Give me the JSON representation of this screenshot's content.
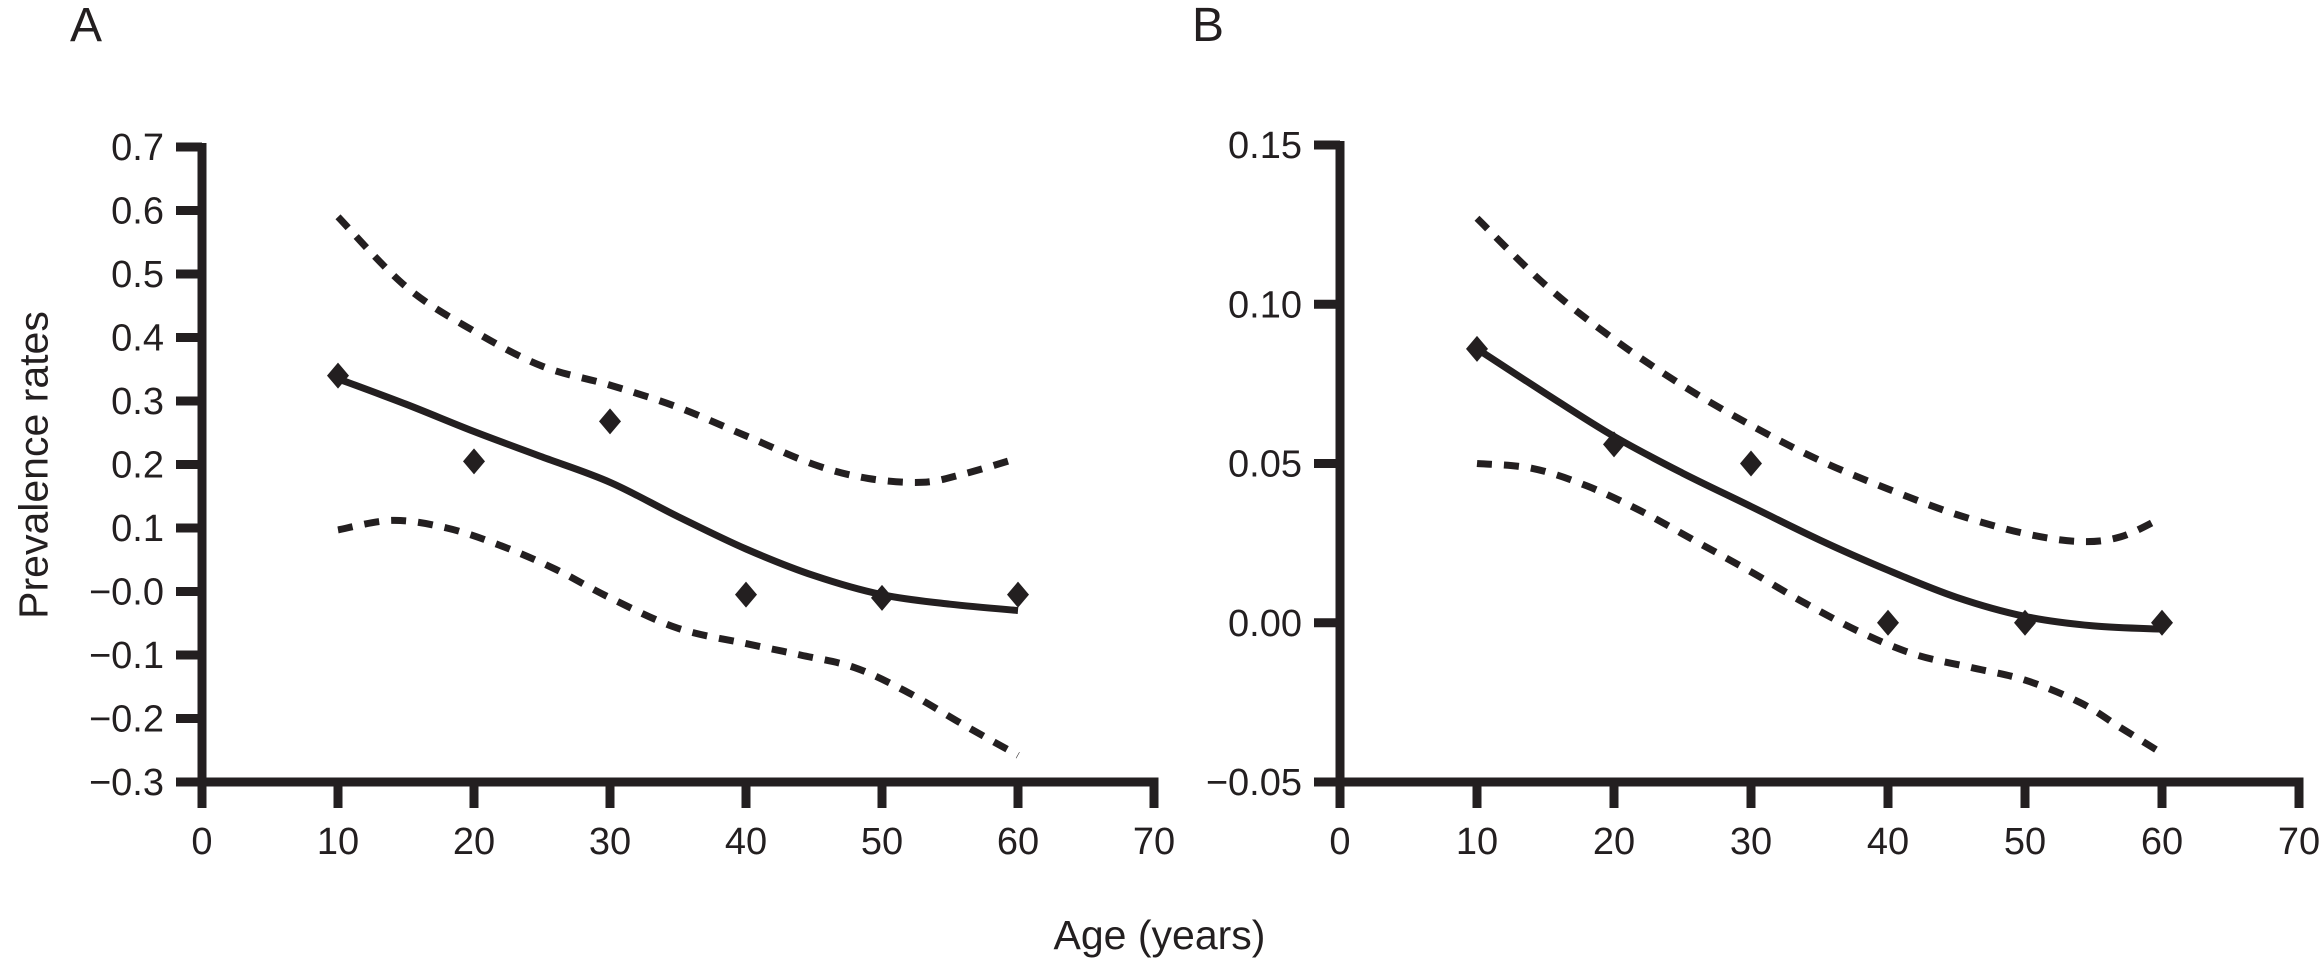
{
  "figure": {
    "xlabel": "Age (years)",
    "ylabel": "Prevalence rates",
    "background_color": "#ffffff",
    "ink_color": "#231f20"
  },
  "chart_data": [
    {
      "type": "line",
      "panel_label": "A",
      "xlabel": "Age (years)",
      "ylabel": "Prevalence rates",
      "xlim": [
        0,
        70
      ],
      "ylim": [
        -0.3,
        0.7
      ],
      "x_ticks": [
        0,
        10,
        20,
        30,
        40,
        50,
        60,
        70
      ],
      "y_ticks": [
        0.7,
        0.6,
        0.5,
        0.4,
        0.3,
        0.2,
        0.1,
        0.0,
        -0.1,
        -0.2,
        -0.3
      ],
      "y_tick_labels": [
        "0.7",
        "0.6",
        "0.5",
        "0.4",
        "0.3",
        "0.2",
        "0.1",
        "−0.0",
        "−0.1",
        "−0.2",
        "−0.3"
      ],
      "grid": false,
      "legend": "none",
      "series": [
        {
          "name": "upper-confidence-band",
          "kind": "line",
          "linestyle": "dashed",
          "points": [
            [
              10,
              0.59
            ],
            [
              15,
              0.48
            ],
            [
              20,
              0.41
            ],
            [
              25,
              0.355
            ],
            [
              30,
              0.325
            ],
            [
              35,
              0.29
            ],
            [
              40,
              0.245
            ],
            [
              45,
              0.2
            ],
            [
              49,
              0.178
            ],
            [
              53,
              0.172
            ],
            [
              56,
              0.185
            ],
            [
              60,
              0.21
            ]
          ]
        },
        {
          "name": "lower-confidence-band",
          "kind": "line",
          "linestyle": "dashed",
          "points": [
            [
              10,
              0.097
            ],
            [
              14,
              0.112
            ],
            [
              18,
              0.1
            ],
            [
              22,
              0.072
            ],
            [
              26,
              0.035
            ],
            [
              30,
              -0.01
            ],
            [
              35,
              -0.058
            ],
            [
              40,
              -0.082
            ],
            [
              44,
              -0.1
            ],
            [
              48,
              -0.12
            ],
            [
              52,
              -0.16
            ],
            [
              56,
              -0.21
            ],
            [
              60,
              -0.258
            ]
          ]
        },
        {
          "name": "fitted-prevalence-curve",
          "kind": "line",
          "linestyle": "solid",
          "points": [
            [
              10,
              0.335
            ],
            [
              15,
              0.295
            ],
            [
              20,
              0.252
            ],
            [
              25,
              0.212
            ],
            [
              30,
              0.172
            ],
            [
              35,
              0.118
            ],
            [
              40,
              0.067
            ],
            [
              45,
              0.025
            ],
            [
              50,
              -0.005
            ],
            [
              55,
              -0.02
            ],
            [
              60,
              -0.03
            ]
          ]
        },
        {
          "name": "observed-prevalence-points",
          "kind": "scatter",
          "marker": "diamond",
          "points": [
            [
              10,
              0.34
            ],
            [
              20,
              0.205
            ],
            [
              30,
              0.268
            ],
            [
              40,
              -0.005
            ],
            [
              50,
              -0.01
            ],
            [
              60,
              -0.005
            ]
          ]
        }
      ]
    },
    {
      "type": "line",
      "panel_label": "B",
      "xlabel": "Age (years)",
      "ylabel": "",
      "xlim": [
        0,
        70
      ],
      "ylim": [
        -0.05,
        0.15
      ],
      "x_ticks": [
        0,
        10,
        20,
        30,
        40,
        50,
        60,
        70
      ],
      "y_ticks": [
        0.15,
        0.1,
        0.05,
        0.0,
        -0.05
      ],
      "y_tick_labels": [
        "0.15",
        "0.10",
        "0.05",
        "0.00",
        "−0.05"
      ],
      "grid": false,
      "legend": "none",
      "series": [
        {
          "name": "upper-confidence-band",
          "kind": "line",
          "linestyle": "dashed",
          "points": [
            [
              10,
              0.127
            ],
            [
              15,
              0.106
            ],
            [
              20,
              0.089
            ],
            [
              25,
              0.0745
            ],
            [
              30,
              0.062
            ],
            [
              35,
              0.051
            ],
            [
              40,
              0.042
            ],
            [
              45,
              0.034
            ],
            [
              50,
              0.028
            ],
            [
              54,
              0.0255
            ],
            [
              57,
              0.027
            ],
            [
              60,
              0.033
            ]
          ]
        },
        {
          "name": "lower-confidence-band",
          "kind": "line",
          "linestyle": "dashed",
          "points": [
            [
              10,
              0.05
            ],
            [
              14,
              0.0485
            ],
            [
              18,
              0.043
            ],
            [
              22,
              0.035
            ],
            [
              26,
              0.0255
            ],
            [
              30,
              0.016
            ],
            [
              34,
              0.006
            ],
            [
              38,
              -0.003
            ],
            [
              42,
              -0.01
            ],
            [
              46,
              -0.014
            ],
            [
              50,
              -0.018
            ],
            [
              54,
              -0.025
            ],
            [
              57,
              -0.033
            ],
            [
              60,
              -0.041
            ]
          ]
        },
        {
          "name": "fitted-prevalence-curve",
          "kind": "line",
          "linestyle": "solid",
          "points": [
            [
              10,
              0.086
            ],
            [
              15,
              0.072
            ],
            [
              20,
              0.0585
            ],
            [
              25,
              0.047
            ],
            [
              30,
              0.0365
            ],
            [
              35,
              0.026
            ],
            [
              40,
              0.0165
            ],
            [
              45,
              0.008
            ],
            [
              50,
              0.002
            ],
            [
              55,
              -0.001
            ],
            [
              60,
              -0.002
            ]
          ]
        },
        {
          "name": "observed-prevalence-points",
          "kind": "scatter",
          "marker": "diamond",
          "points": [
            [
              10,
              0.086
            ],
            [
              20,
              0.056
            ],
            [
              30,
              0.05
            ],
            [
              40,
              0.0
            ],
            [
              50,
              0.0
            ],
            [
              60,
              0.0
            ]
          ]
        }
      ]
    }
  ]
}
